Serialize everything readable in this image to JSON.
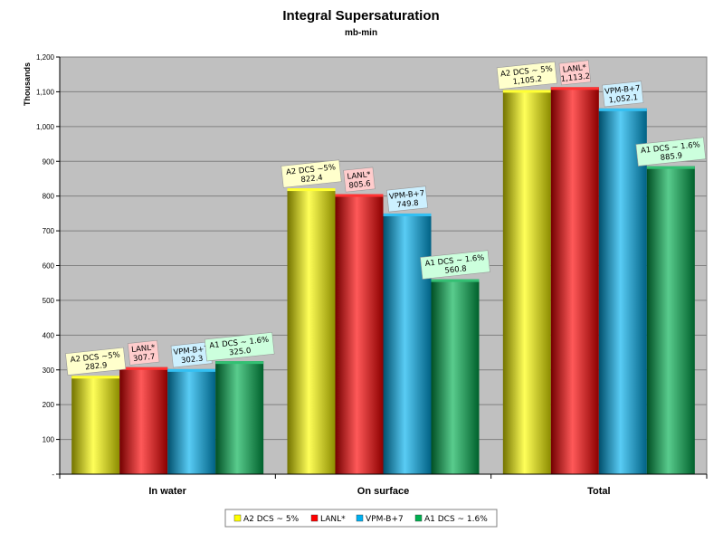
{
  "chart_data": {
    "type": "bar",
    "title": "Integral Supersaturation",
    "subtitle": "mb-min",
    "ylabel": "Thousands",
    "xlabel": "",
    "categories": [
      "In water",
      "On surface",
      "Total"
    ],
    "ylim": [
      0,
      1200
    ],
    "yticks": [
      0,
      100,
      200,
      300,
      400,
      500,
      600,
      700,
      800,
      900,
      1000,
      1100,
      1200
    ],
    "ytick_labels": [
      "-",
      "100",
      "200",
      "300",
      "400",
      "500",
      "600",
      "700",
      "800",
      "900",
      "1,000",
      "1,100",
      "1,200"
    ],
    "grid": true,
    "legend_position": "bottom",
    "series": [
      {
        "name": "A2  DCS ~ 5%",
        "color": "#ffff00",
        "label_bg": "#ffffcc",
        "values": [
          282.9,
          822.4,
          1105.2
        ],
        "data_labels": [
          [
            "A2  DCS ~5%",
            "282.9"
          ],
          [
            "A2  DCS ~5%",
            "822.4"
          ],
          [
            "A2 DCS ~ 5%",
            "1,105.2"
          ]
        ]
      },
      {
        "name": "LANL*",
        "color": "#ff0000",
        "label_bg": "#ffcccc",
        "values": [
          307.7,
          805.6,
          1113.2
        ],
        "data_labels": [
          [
            "LANL*",
            "307.7"
          ],
          [
            "LANL*",
            "805.6"
          ],
          [
            "LANL*",
            "1,113.2"
          ]
        ]
      },
      {
        "name": "VPM-B+7",
        "color": "#00b0f0",
        "label_bg": "#ccf0ff",
        "values": [
          302.3,
          749.8,
          1052.1
        ],
        "data_labels": [
          [
            "VPM-B+7",
            "302.3"
          ],
          [
            "VPM-B+7",
            "749.8"
          ],
          [
            "VPM-B+7",
            "1,052.1"
          ]
        ]
      },
      {
        "name": "A1  DCS ~ 1.6%",
        "color": "#00b050",
        "label_bg": "#ccffdd",
        "values": [
          325.0,
          560.8,
          885.9
        ],
        "data_labels": [
          [
            "A1 DCS ~ 1.6%",
            "325.0"
          ],
          [
            "A1 DCS ~ 1.6%",
            "560.8"
          ],
          [
            "A1 DCS ~ 1.6%",
            "885.9"
          ]
        ]
      }
    ]
  }
}
